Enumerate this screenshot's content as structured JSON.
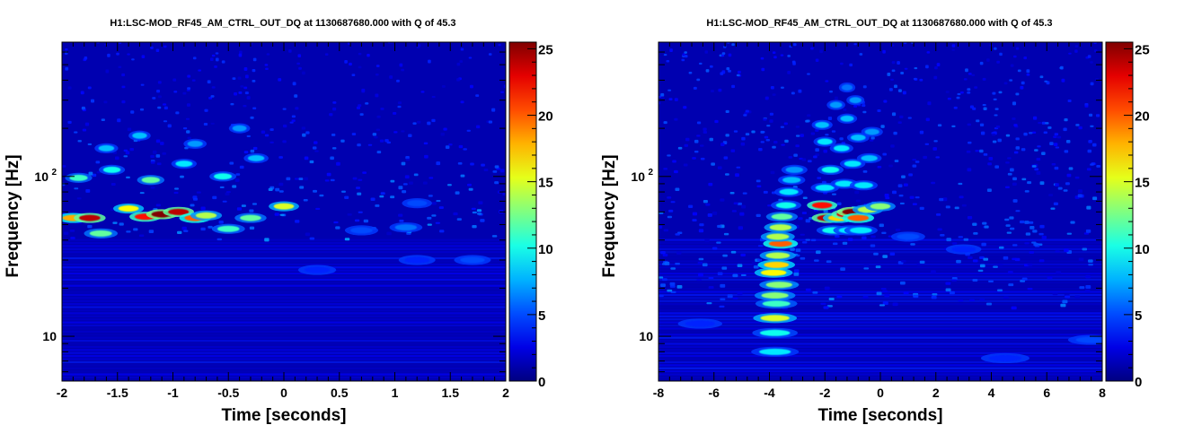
{
  "chart_data": [
    {
      "type": "heatmap",
      "title": "H1:LSC-MOD_RF45_AM_CTRL_OUT_DQ at 1130687680.000 with Q of 45.3",
      "xlabel": "Time [seconds]",
      "ylabel": "Frequency [Hz]",
      "xlim": [
        -2,
        2
      ],
      "ylim_log10": [
        0.72,
        2.84
      ],
      "x_ticks": [
        {
          "value": -2,
          "label": "-2"
        },
        {
          "value": -1.5,
          "label": "-1.5"
        },
        {
          "value": -1,
          "label": "-1"
        },
        {
          "value": -0.5,
          "label": "-0.5"
        },
        {
          "value": 0,
          "label": "0"
        },
        {
          "value": 0.5,
          "label": "0.5"
        },
        {
          "value": 1,
          "label": "1"
        },
        {
          "value": 1.5,
          "label": "1.5"
        },
        {
          "value": 2,
          "label": "2"
        }
      ],
      "y_ticks": [
        {
          "value": 10,
          "base": "10",
          "exp": ""
        },
        {
          "value": 100,
          "base": "10",
          "exp": "2"
        }
      ],
      "colorbar": {
        "range": [
          0,
          25.5
        ],
        "ticks": [
          0,
          5,
          10,
          15,
          20,
          25
        ],
        "tick_labels": [
          "0",
          "5",
          "10",
          "15",
          "20",
          "25"
        ],
        "colormap": "jet"
      },
      "background_energy": 1.2,
      "texture": {
        "min_f": 40,
        "max_f": 700,
        "density": 420,
        "amp": 5.5,
        "fdecay": 0.6
      },
      "blobs": [
        {
          "t": -1.9,
          "f": 55,
          "e": 18
        },
        {
          "t": -1.75,
          "f": 55,
          "e": 24
        },
        {
          "t": -1.65,
          "f": 44,
          "e": 12
        },
        {
          "t": -1.4,
          "f": 63,
          "e": 16
        },
        {
          "t": -1.25,
          "f": 56,
          "e": 22
        },
        {
          "t": -1.1,
          "f": 58,
          "e": 25.5
        },
        {
          "t": -0.95,
          "f": 60,
          "e": 24
        },
        {
          "t": -0.8,
          "f": 55,
          "e": 20
        },
        {
          "t": -0.7,
          "f": 57,
          "e": 14
        },
        {
          "t": -0.5,
          "f": 47,
          "e": 11
        },
        {
          "t": -0.3,
          "f": 55,
          "e": 12
        },
        {
          "t": 0,
          "f": 65,
          "e": 15
        },
        {
          "t": -1.85,
          "f": 98,
          "e": 11
        },
        {
          "t": -1.55,
          "f": 110,
          "e": 10
        },
        {
          "t": -1.2,
          "f": 95,
          "e": 12
        },
        {
          "t": -0.9,
          "f": 120,
          "e": 9
        },
        {
          "t": -0.55,
          "f": 100,
          "e": 10
        },
        {
          "t": -0.25,
          "f": 130,
          "e": 8
        },
        {
          "t": -1.6,
          "f": 150,
          "e": 8
        },
        {
          "t": -1.3,
          "f": 180,
          "e": 8
        },
        {
          "t": -0.8,
          "f": 160,
          "e": 7
        },
        {
          "t": -0.4,
          "f": 200,
          "e": 7
        },
        {
          "t": 1.1,
          "f": 48,
          "e": 6
        },
        {
          "t": 0.7,
          "f": 46,
          "e": 5
        },
        {
          "t": 1.7,
          "f": 30,
          "e": 5
        },
        {
          "t": 1.2,
          "f": 30,
          "e": 4
        },
        {
          "t": 1.2,
          "f": 68,
          "e": 5
        },
        {
          "t": 0.3,
          "f": 26,
          "e": 4
        }
      ]
    },
    {
      "type": "heatmap",
      "title": "H1:LSC-MOD_RF45_AM_CTRL_OUT_DQ at 1130687680.000 with Q of 45.3",
      "xlabel": "Time [seconds]",
      "ylabel": "Frequency [Hz]",
      "xlim": [
        -8,
        8
      ],
      "ylim_log10": [
        0.72,
        2.84
      ],
      "x_ticks": [
        {
          "value": -8,
          "label": "-8"
        },
        {
          "value": -6,
          "label": "-6"
        },
        {
          "value": -4,
          "label": "-4"
        },
        {
          "value": -2,
          "label": "-2"
        },
        {
          "value": 0,
          "label": "0"
        },
        {
          "value": 2,
          "label": "2"
        },
        {
          "value": 4,
          "label": "4"
        },
        {
          "value": 6,
          "label": "6"
        },
        {
          "value": 8,
          "label": "8"
        }
      ],
      "y_ticks": [
        {
          "value": 10,
          "base": "10",
          "exp": ""
        },
        {
          "value": 100,
          "base": "10",
          "exp": "2"
        }
      ],
      "colorbar": {
        "range": [
          0,
          25.5
        ],
        "ticks": [
          0,
          5,
          10,
          15,
          20,
          25
        ],
        "tick_labels": [
          "0",
          "5",
          "10",
          "15",
          "20",
          "25"
        ],
        "colormap": "jet"
      },
      "background_energy": 1.2,
      "texture": {
        "min_f": 15,
        "max_f": 700,
        "density": 700,
        "amp": 5,
        "fdecay": 0.3
      },
      "blobs": [
        {
          "t": -3.8,
          "f": 8,
          "e": 9
        },
        {
          "t": -3.8,
          "f": 10.5,
          "e": 10
        },
        {
          "t": -3.8,
          "f": 13,
          "e": 15
        },
        {
          "t": -3.75,
          "f": 16,
          "e": 11
        },
        {
          "t": -3.8,
          "f": 18,
          "e": 13
        },
        {
          "t": -3.65,
          "f": 21,
          "e": 13
        },
        {
          "t": -3.85,
          "f": 25,
          "e": 16
        },
        {
          "t": -3.75,
          "f": 28,
          "e": 17
        },
        {
          "t": -3.7,
          "f": 32,
          "e": 14
        },
        {
          "t": -3.6,
          "f": 38,
          "e": 20
        },
        {
          "t": -3.7,
          "f": 42,
          "e": 14
        },
        {
          "t": -3.6,
          "f": 48,
          "e": 14
        },
        {
          "t": -3.55,
          "f": 56,
          "e": 12
        },
        {
          "t": -3.4,
          "f": 66,
          "e": 10
        },
        {
          "t": -3.3,
          "f": 80,
          "e": 9
        },
        {
          "t": -3.2,
          "f": 95,
          "e": 8
        },
        {
          "t": -3.1,
          "f": 110,
          "e": 7
        },
        {
          "t": -2.1,
          "f": 66,
          "e": 22
        },
        {
          "t": -1.9,
          "f": 55,
          "e": 24
        },
        {
          "t": -1.5,
          "f": 55,
          "e": 17
        },
        {
          "t": -1.2,
          "f": 58,
          "e": 23
        },
        {
          "t": -1.0,
          "f": 60,
          "e": 25.5
        },
        {
          "t": -0.8,
          "f": 55,
          "e": 20
        },
        {
          "t": -0.45,
          "f": 62,
          "e": 14
        },
        {
          "t": 0,
          "f": 65,
          "e": 13
        },
        {
          "t": -1.7,
          "f": 46,
          "e": 10
        },
        {
          "t": -1.1,
          "f": 46,
          "e": 9
        },
        {
          "t": -0.7,
          "f": 46,
          "e": 9
        },
        {
          "t": -2.0,
          "f": 85,
          "e": 9
        },
        {
          "t": -1.3,
          "f": 90,
          "e": 9
        },
        {
          "t": -0.6,
          "f": 88,
          "e": 9
        },
        {
          "t": -1.8,
          "f": 110,
          "e": 10
        },
        {
          "t": -1.0,
          "f": 120,
          "e": 9
        },
        {
          "t": -0.4,
          "f": 130,
          "e": 8
        },
        {
          "t": -2.0,
          "f": 165,
          "e": 9
        },
        {
          "t": -1.4,
          "f": 150,
          "e": 9
        },
        {
          "t": -0.8,
          "f": 175,
          "e": 8
        },
        {
          "t": -2.1,
          "f": 210,
          "e": 8
        },
        {
          "t": -1.2,
          "f": 230,
          "e": 8
        },
        {
          "t": -0.3,
          "f": 190,
          "e": 7
        },
        {
          "t": -1.6,
          "f": 280,
          "e": 7
        },
        {
          "t": -0.9,
          "f": 300,
          "e": 7
        },
        {
          "t": -1.2,
          "f": 360,
          "e": 6
        },
        {
          "t": 1.0,
          "f": 42,
          "e": 5
        },
        {
          "t": 3.0,
          "f": 35,
          "e": 4
        },
        {
          "t": 7.6,
          "f": 9.5,
          "e": 5
        },
        {
          "t": 4.5,
          "f": 7.3,
          "e": 4
        },
        {
          "t": -6.5,
          "f": 12,
          "e": 4
        }
      ]
    }
  ]
}
